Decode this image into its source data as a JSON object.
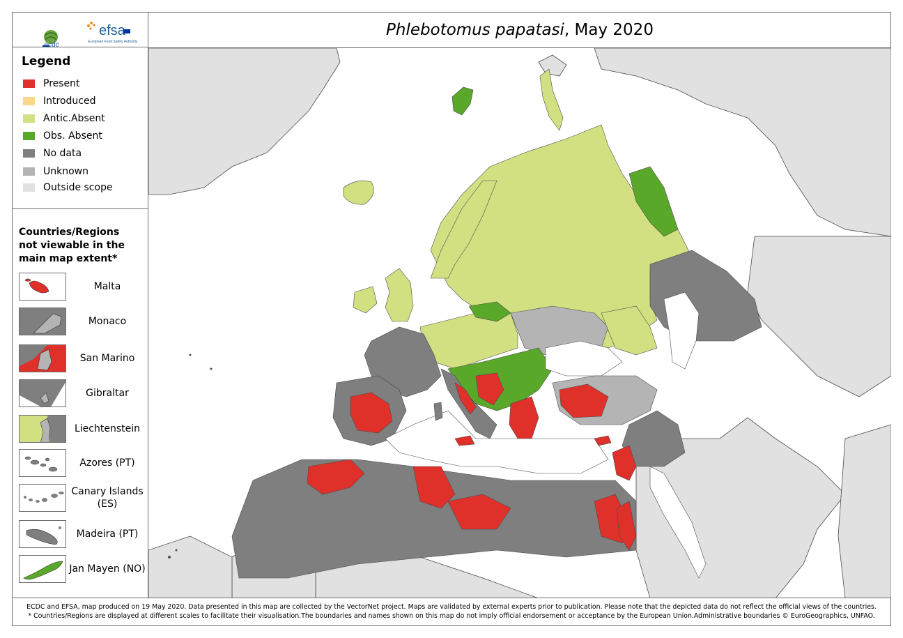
{
  "header": {
    "title_species": "Phlebotomus papatasi",
    "title_date": ", May 2020",
    "logo_ecdc": "ecdc",
    "logo_efsa": "efsa",
    "logo_efsa_sub": "European Food Safety Authority"
  },
  "legend": {
    "title": "Legend",
    "items": [
      {
        "label": "Present",
        "color": "#e0302a"
      },
      {
        "label": "Introduced",
        "color": "#fcd689"
      },
      {
        "label": "Antic.Absent",
        "color": "#d2e082"
      },
      {
        "label": "Obs. Absent",
        "color": "#5aa829"
      },
      {
        "label": "No data",
        "color": "#7f7f7f"
      },
      {
        "label": "Unknown",
        "color": "#b4b4b4"
      },
      {
        "label": "Outside scope",
        "color": "#e1e1e1"
      }
    ]
  },
  "insets": {
    "title_line1": "Countries/Regions",
    "title_line2": "not viewable in the",
    "title_line3": "main map extent*",
    "items": [
      {
        "label": "Malta"
      },
      {
        "label": "Monaco"
      },
      {
        "label": "San Marino"
      },
      {
        "label": "Gibraltar"
      },
      {
        "label": "Liechtenstein"
      },
      {
        "label": "Azores (PT)"
      },
      {
        "label": "Canary Islands (ES)"
      },
      {
        "label": "Madeira (PT)"
      },
      {
        "label": "Jan Mayen (NO)"
      }
    ]
  },
  "footer": {
    "line1": "ECDC and EFSA, map produced on 19 May 2020. Data presented in this map are collected by the VectorNet project. Maps are validated by external experts prior to publication. Please note that the depicted data do not reflect the official views of the countries.",
    "line2": "* Countries/Regions are displayed at different scales to facilitate their visualisation.The boundaries and names shown on this map do not imply official endorsement or acceptance by the European Union.Administrative boundaries © EuroGeographics, UNFAO."
  },
  "colors": {
    "present": "#e0302a",
    "antic_absent": "#d2e082",
    "obs_absent": "#5aa829",
    "no_data": "#7f7f7f",
    "unknown": "#b4b4b4",
    "outside": "#e1e1e1",
    "sea": "#ffffff",
    "border": "#6d6d6d"
  }
}
